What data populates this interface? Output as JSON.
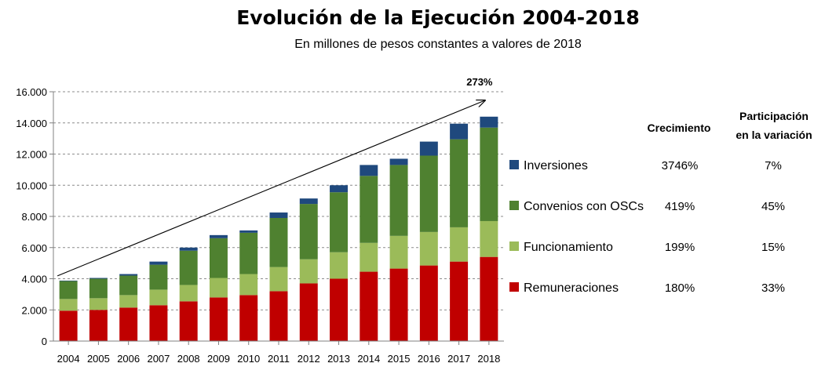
{
  "chart_data": {
    "type": "bar",
    "stacked": true,
    "title": "Evolución de la Ejecución 2004-2018",
    "subtitle": "En millones de pesos constantes a valores de 2018",
    "xlabel": "",
    "ylabel": "",
    "ylim": [
      0,
      16000
    ],
    "y_tick_labels": [
      "0",
      "2.000",
      "4.000",
      "6.000",
      "8.000",
      "10.000",
      "12.000",
      "14.000",
      "16.000"
    ],
    "grid": true,
    "categories": [
      "2004",
      "2005",
      "2006",
      "2007",
      "2008",
      "2009",
      "2010",
      "2011",
      "2012",
      "2013",
      "2014",
      "2015",
      "2016",
      "2017",
      "2018"
    ],
    "series": [
      {
        "name": "Remuneraciones",
        "color": "#C00000",
        "values": [
          1950,
          2000,
          2150,
          2300,
          2550,
          2800,
          2950,
          3200,
          3700,
          4000,
          4450,
          4650,
          4850,
          5100,
          5400
        ]
      },
      {
        "name": "Funcionamiento",
        "color": "#9BBB59",
        "values": [
          750,
          750,
          800,
          1000,
          1050,
          1250,
          1350,
          1550,
          1550,
          1700,
          1850,
          2100,
          2150,
          2200,
          2300
        ]
      },
      {
        "name": "Convenios con OSCs",
        "color": "#4F8130",
        "values": [
          1150,
          1250,
          1250,
          1600,
          2200,
          2550,
          2650,
          3150,
          3550,
          3850,
          4300,
          4550,
          4900,
          5650,
          6000
        ]
      },
      {
        "name": "Inversiones",
        "color": "#1F497D",
        "values": [
          30,
          50,
          100,
          200,
          200,
          200,
          150,
          350,
          350,
          450,
          700,
          400,
          900,
          1000,
          700
        ]
      }
    ],
    "trend_annotation": "273%",
    "legend_position": "right"
  },
  "table": {
    "headers": {
      "growth": "Crecimiento",
      "share_line1": "Participación",
      "share_line2": "en la variación"
    },
    "rows": [
      {
        "series": "Inversiones",
        "growth": "3746%",
        "share": "7%"
      },
      {
        "series": "Convenios con OSCs",
        "growth": "419%",
        "share": "45%"
      },
      {
        "series": "Funcionamiento",
        "growth": "199%",
        "share": "15%"
      },
      {
        "series": "Remuneraciones",
        "growth": "180%",
        "share": "33%"
      }
    ]
  }
}
